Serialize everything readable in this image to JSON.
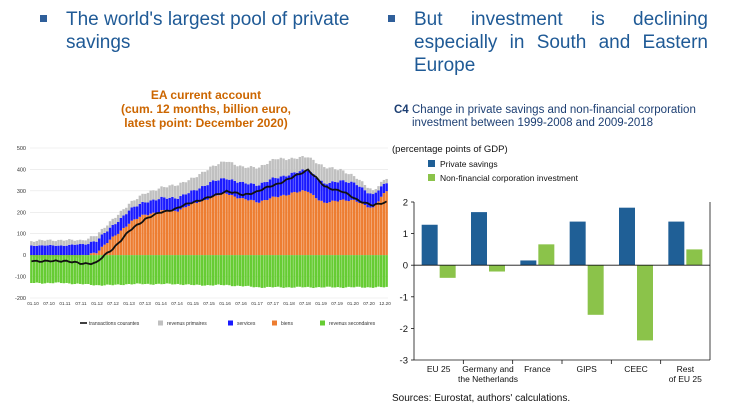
{
  "slide": {
    "bullet_left": "The world's largest pool of private savings",
    "bullet_right": "But investment is declining especially in South and Eastern Europe"
  },
  "chart_data": [
    {
      "type": "bar",
      "title_lines": [
        "EA current account",
        "(cum. 12 months, billion euro,",
        "latest point: December 2020)"
      ],
      "x_tick_labels": [
        "01.10",
        "07.10",
        "01.11",
        "07.11",
        "01.12",
        "07.12",
        "01.13",
        "07.13",
        "01.14",
        "07.14",
        "01.15",
        "07.15",
        "01.16",
        "07.16",
        "01.17",
        "07.17",
        "01.18",
        "07.18",
        "01.19",
        "07.19",
        "01.20",
        "07.20",
        "12.20"
      ],
      "ylim": [
        -200,
        500
      ],
      "y_ticks": [
        -200,
        -100,
        0,
        100,
        200,
        300,
        400,
        500
      ],
      "stacked": true,
      "series": [
        {
          "name": "transactions courantes",
          "kind": "line",
          "color": "#111111"
        },
        {
          "name": "revenus primaires",
          "kind": "bar",
          "color": "#c0c0c0"
        },
        {
          "name": "services",
          "kind": "bar",
          "color": "#1a1aff"
        },
        {
          "name": "biens",
          "kind": "bar",
          "color": "#ed7d31"
        },
        {
          "name": "revenus secondaires",
          "kind": "bar",
          "color": "#66cc33"
        }
      ],
      "anchors": [
        {
          "t": 0,
          "biens": -10,
          "services": 45,
          "primaires": 20,
          "secondaires": -130,
          "total": -25
        },
        {
          "t": 6,
          "biens": -15,
          "services": 45,
          "primaires": 25,
          "secondaires": -130,
          "total": -30
        },
        {
          "t": 12,
          "biens": -5,
          "services": 45,
          "primaires": 25,
          "secondaires": -130,
          "total": -25
        },
        {
          "t": 18,
          "biens": -10,
          "services": 50,
          "primaires": 20,
          "secondaires": -135,
          "total": -40
        },
        {
          "t": 24,
          "biens": 15,
          "services": 55,
          "primaires": 25,
          "secondaires": -140,
          "total": -35
        },
        {
          "t": 30,
          "biens": 80,
          "services": 55,
          "primaires": 30,
          "secondaires": -140,
          "total": 30
        },
        {
          "t": 36,
          "biens": 150,
          "services": 60,
          "primaires": 30,
          "secondaires": -135,
          "total": 110
        },
        {
          "t": 42,
          "biens": 190,
          "services": 60,
          "primaires": 40,
          "secondaires": -135,
          "total": 170
        },
        {
          "t": 48,
          "biens": 205,
          "services": 60,
          "primaires": 50,
          "secondaires": -135,
          "total": 200
        },
        {
          "t": 54,
          "biens": 210,
          "services": 60,
          "primaires": 60,
          "secondaires": -135,
          "total": 220
        },
        {
          "t": 60,
          "biens": 240,
          "services": 60,
          "primaires": 60,
          "secondaires": -140,
          "total": 250
        },
        {
          "t": 66,
          "biens": 270,
          "services": 70,
          "primaires": 70,
          "secondaires": -140,
          "total": 270
        },
        {
          "t": 72,
          "biens": 290,
          "services": 70,
          "primaires": 80,
          "secondaires": -140,
          "total": 300
        },
        {
          "t": 78,
          "biens": 260,
          "services": 75,
          "primaires": 75,
          "secondaires": -145,
          "total": 280
        },
        {
          "t": 84,
          "biens": 250,
          "services": 80,
          "primaires": 80,
          "secondaires": -150,
          "total": 300
        },
        {
          "t": 90,
          "biens": 270,
          "services": 90,
          "primaires": 90,
          "secondaires": -150,
          "total": 330
        },
        {
          "t": 96,
          "biens": 290,
          "services": 90,
          "primaires": 70,
          "secondaires": -150,
          "total": 360
        },
        {
          "t": 102,
          "biens": 300,
          "services": 100,
          "primaires": 60,
          "secondaires": -150,
          "total": 400
        },
        {
          "t": 108,
          "biens": 240,
          "services": 90,
          "primaires": 80,
          "secondaires": -150,
          "total": 320
        },
        {
          "t": 114,
          "biens": 260,
          "services": 90,
          "primaires": 50,
          "secondaires": -150,
          "total": 300
        },
        {
          "t": 120,
          "biens": 250,
          "services": 80,
          "primaires": 30,
          "secondaires": -150,
          "total": 260
        },
        {
          "t": 126,
          "biens": 220,
          "services": 60,
          "primaires": 20,
          "secondaires": -150,
          "total": 230
        },
        {
          "t": 131,
          "biens": 300,
          "services": 40,
          "primaires": 20,
          "secondaires": -150,
          "total": 250
        }
      ]
    },
    {
      "type": "bar",
      "chart_id": "C4",
      "title": "Change in private savings and non-financial corporation investment between 1999-2008 and 2009-2018",
      "unit": "(percentage points of GDP)",
      "categories": [
        [
          "EU 25"
        ],
        [
          "Germany and",
          "the Netherlands"
        ],
        [
          "France"
        ],
        [
          "GIPS"
        ],
        [
          "CEEC"
        ],
        [
          "Rest",
          "of EU 25"
        ]
      ],
      "series": [
        {
          "name": "Private savings",
          "color": "#1f5f96",
          "values": [
            1.28,
            1.68,
            0.15,
            1.38,
            1.82,
            1.38
          ]
        },
        {
          "name": "Non-financial corporation investment",
          "color": "#8bc34a",
          "values": [
            -0.4,
            -0.2,
            0.66,
            -1.57,
            -2.38,
            0.5
          ]
        }
      ],
      "ylim": [
        -3,
        2
      ],
      "y_ticks": [
        2,
        1,
        0,
        -1,
        -2,
        -3
      ],
      "source": "Sources: Eurostat, authors' calculations."
    }
  ]
}
